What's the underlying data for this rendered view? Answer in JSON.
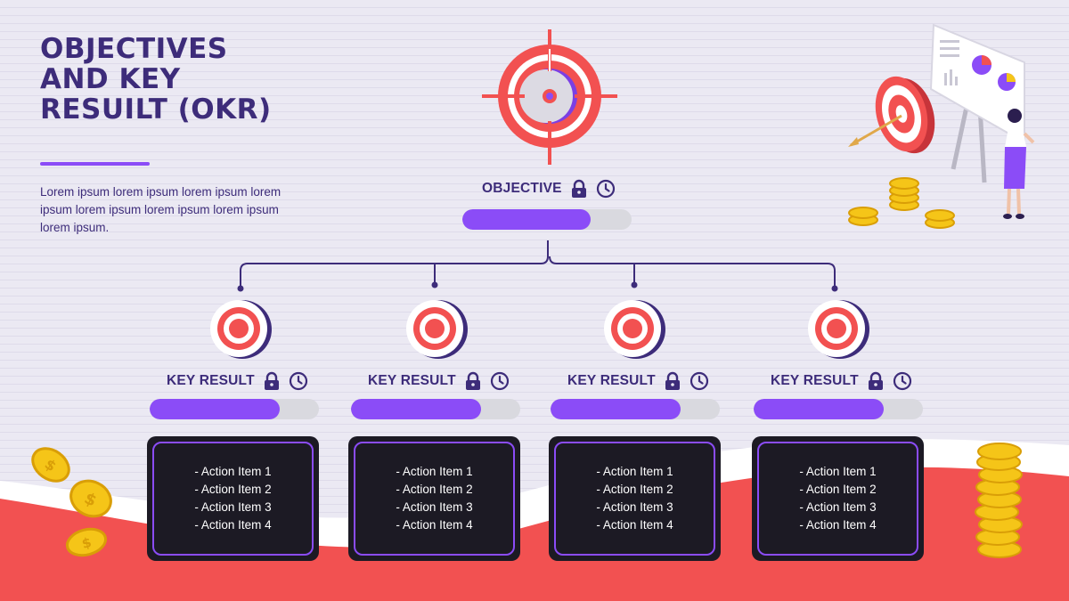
{
  "title": "OBJECTIVES AND KEY RESUILT (OKR)",
  "description": "Lorem ipsum lorem ipsum lorem ipsum lorem ipsum lorem ipsum lorem ipsum lorem ipsum lorem ipsum.",
  "objective": {
    "label": "OBJECTIVE",
    "progress": 0.76
  },
  "key_results": [
    {
      "label": "KEY RESULT",
      "progress": 0.77,
      "items": [
        "- Action Item 1",
        "- Action Item 2",
        "- Action Item 3",
        "- Action Item 4"
      ]
    },
    {
      "label": "KEY RESULT",
      "progress": 0.77,
      "items": [
        "- Action Item 1",
        "- Action Item 2",
        "- Action Item 3",
        "- Action Item 4"
      ]
    },
    {
      "label": "KEY RESULT",
      "progress": 0.77,
      "items": [
        "- Action Item 1",
        "- Action Item 2",
        "- Action Item 3",
        "- Action Item 4"
      ]
    },
    {
      "label": "KEY RESULT",
      "progress": 0.77,
      "items": [
        "- Action Item 1",
        "- Action Item 2",
        "- Action Item 3",
        "- Action Item 4"
      ]
    }
  ],
  "icons": [
    "target-icon",
    "lock-icon",
    "clock-icon",
    "coin-icon",
    "presenter-illustration"
  ],
  "colors": {
    "accent": "#8b4cf7",
    "text": "#3d2c7a",
    "red": "#f25151",
    "card": "#1c1a24",
    "track": "#d9d9df"
  }
}
